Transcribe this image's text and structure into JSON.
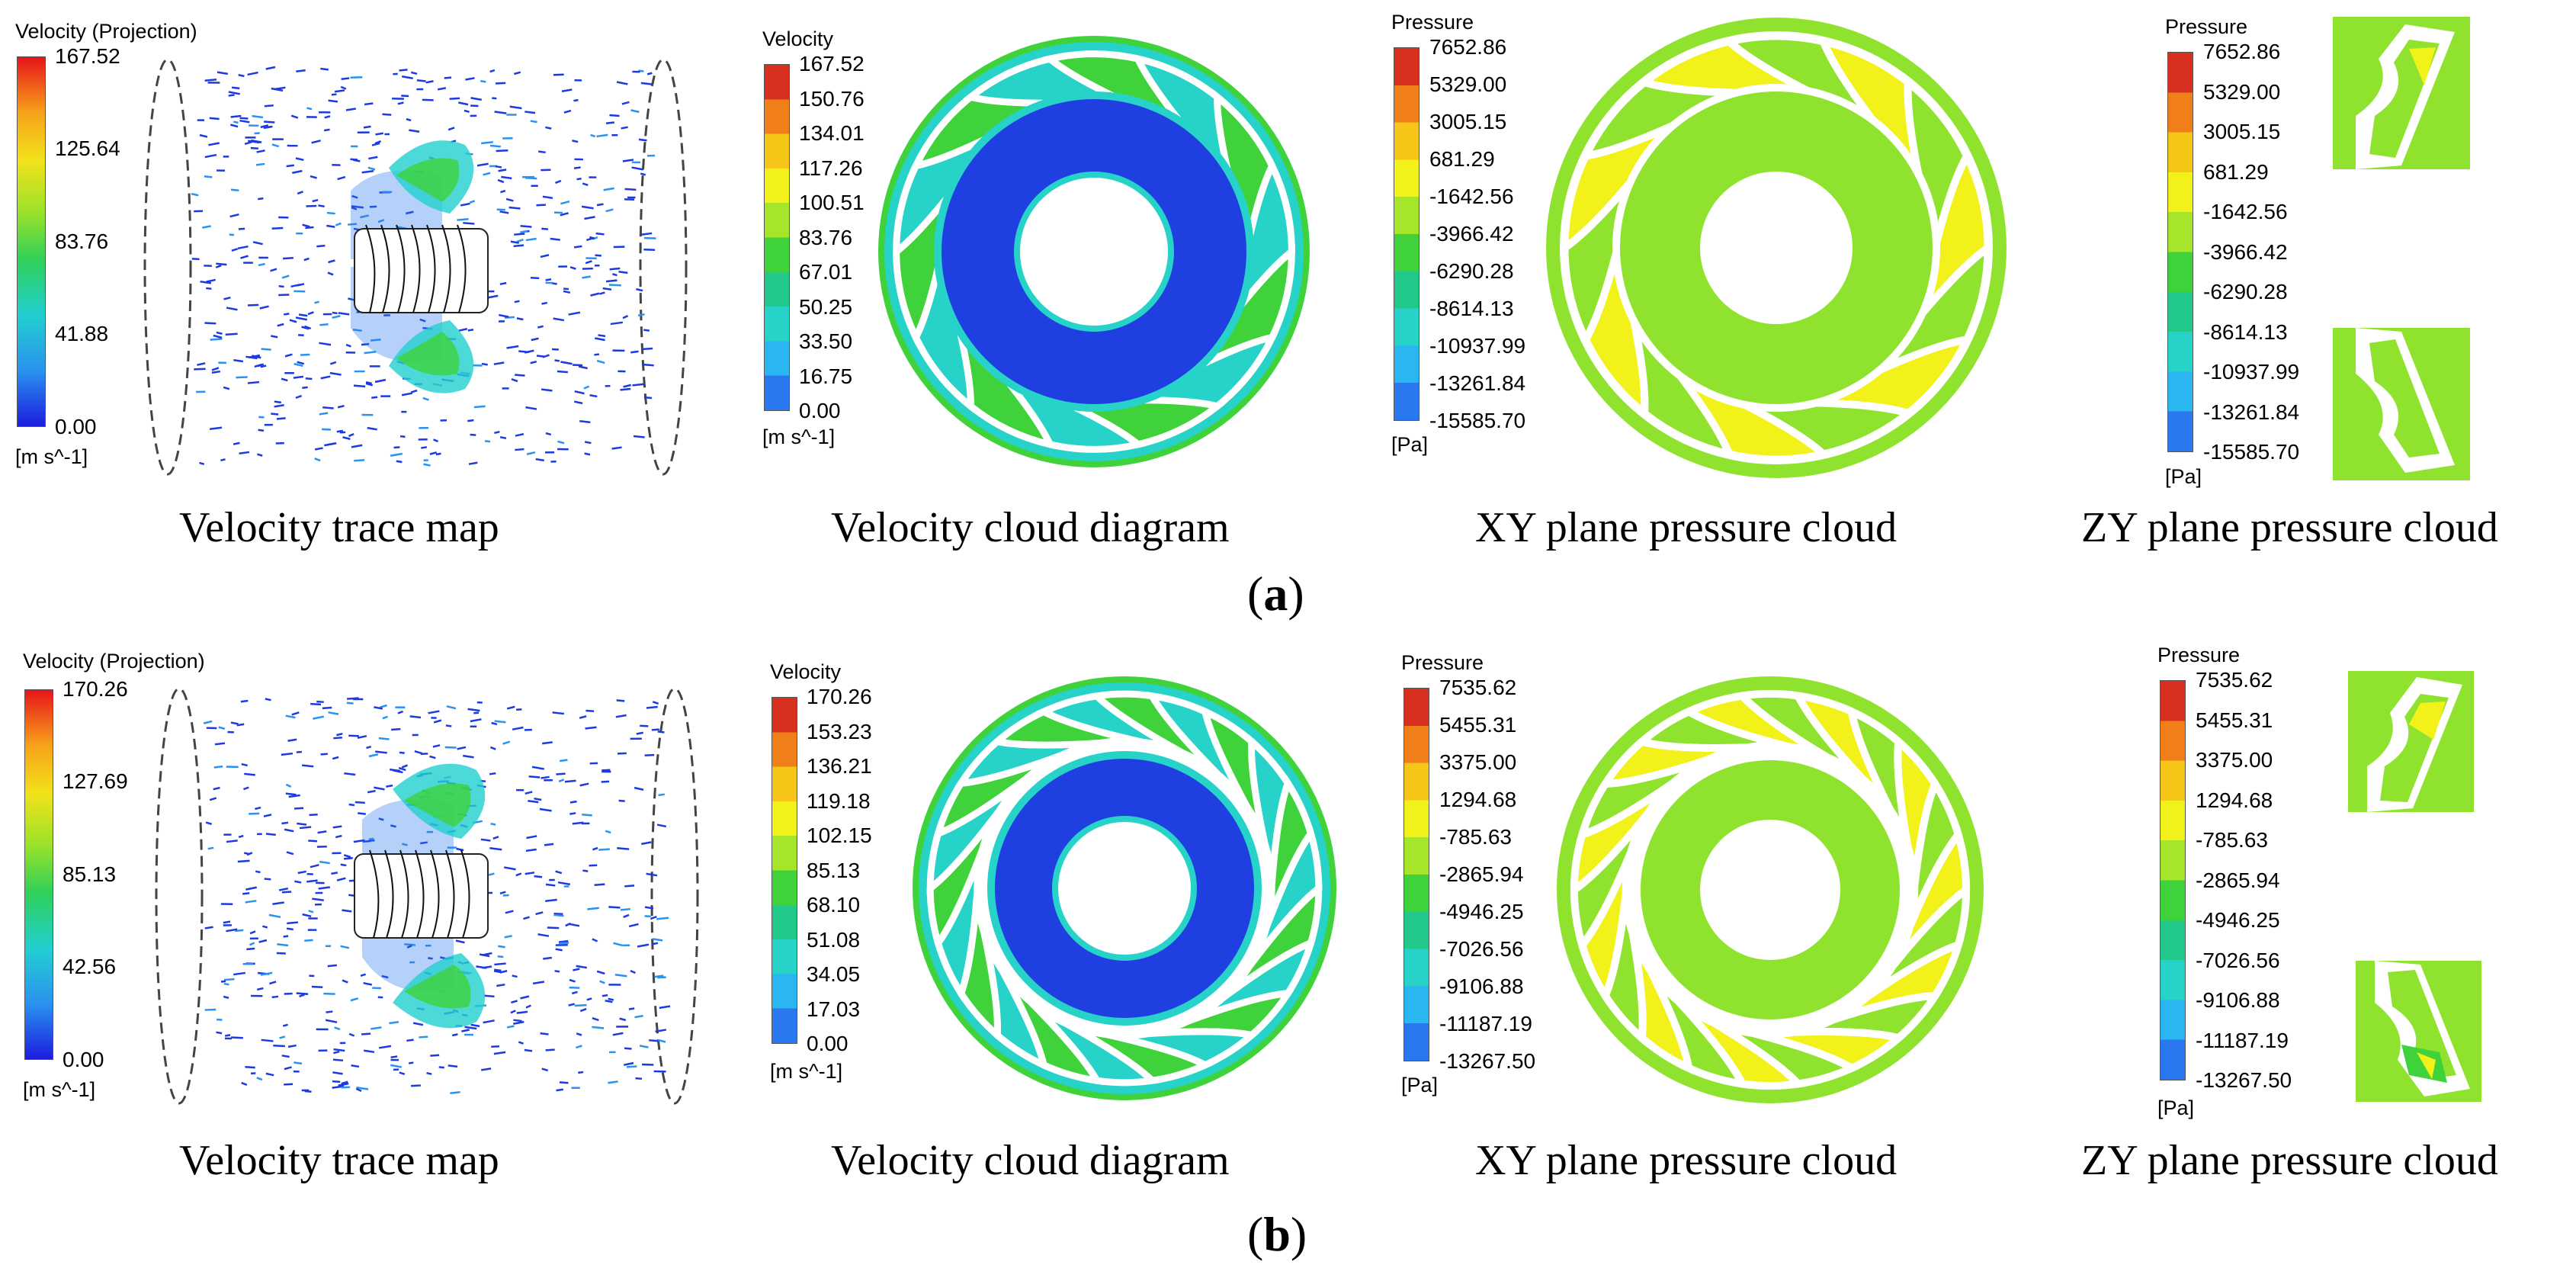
{
  "rows": [
    {
      "label": "a",
      "panels": {
        "trace": {
          "caption": "Velocity trace map",
          "legend": {
            "title": "Velocity (Projection)",
            "unit": "[m s^-1]",
            "ticks": [
              "167.52",
              "125.64",
              "83.76",
              "41.88",
              "0.00"
            ]
          }
        },
        "vel_cloud": {
          "caption": "Velocity cloud diagram",
          "legend": {
            "title": "Velocity",
            "unit": "[m s^-1]",
            "ticks": [
              "167.52",
              "150.76",
              "134.01",
              "117.26",
              "100.51",
              "83.76",
              "67.01",
              "50.25",
              "33.50",
              "16.75",
              "0.00"
            ]
          }
        },
        "xy": {
          "caption": "XY plane pressure cloud",
          "legend": {
            "title": "Pressure",
            "unit": "[Pa]",
            "ticks": [
              "7652.86",
              "5329.00",
              "3005.15",
              "681.29",
              "-1642.56",
              "-3966.42",
              "-6290.28",
              "-8614.13",
              "-10937.99",
              "-13261.84",
              "-15585.70"
            ]
          }
        },
        "zy": {
          "caption": "ZY plane pressure cloud",
          "legend": {
            "title": "Pressure",
            "unit": "[Pa]",
            "ticks": [
              "7652.86",
              "5329.00",
              "3005.15",
              "681.29",
              "-1642.56",
              "-3966.42",
              "-6290.28",
              "-8614.13",
              "-10937.99",
              "-13261.84",
              "-15585.70"
            ]
          }
        }
      }
    },
    {
      "label": "b",
      "panels": {
        "trace": {
          "caption": "Velocity trace map",
          "legend": {
            "title": "Velocity (Projection)",
            "unit": "[m s^-1]",
            "ticks": [
              "170.26",
              "127.69",
              "85.13",
              "42.56",
              "0.00"
            ]
          }
        },
        "vel_cloud": {
          "caption": "Velocity cloud diagram",
          "legend": {
            "title": "Velocity",
            "unit": "[m s^-1]",
            "ticks": [
              "170.26",
              "153.23",
              "136.21",
              "119.18",
              "102.15",
              "85.13",
              "68.10",
              "51.08",
              "34.05",
              "17.03",
              "0.00"
            ]
          }
        },
        "xy": {
          "caption": "XY plane pressure cloud",
          "legend": {
            "title": "Pressure",
            "unit": "[Pa]",
            "ticks": [
              "7535.62",
              "5455.31",
              "3375.00",
              "1294.68",
              "-785.63",
              "-2865.94",
              "-4946.25",
              "-7026.56",
              "-9106.88",
              "-11187.19",
              "-13267.50"
            ]
          }
        },
        "zy": {
          "caption": "ZY plane pressure cloud",
          "legend": {
            "title": "Pressure",
            "unit": "[Pa]",
            "ticks": [
              "7535.62",
              "5455.31",
              "3375.00",
              "1294.68",
              "-785.63",
              "-2865.94",
              "-4946.25",
              "-7026.56",
              "-9106.88",
              "-11187.19",
              "-13267.50"
            ]
          }
        }
      }
    }
  ],
  "colors": {
    "scale": [
      "#d7301f",
      "#f07f1a",
      "#f5c518",
      "#f2f21a",
      "#a7e52a",
      "#3fd23a",
      "#22c98a",
      "#27d2c8",
      "#2ab6f0",
      "#2a78ef",
      "#1e3be0"
    ],
    "green_field": "#8fe32e",
    "deep_blue": "#1f3fe0"
  }
}
